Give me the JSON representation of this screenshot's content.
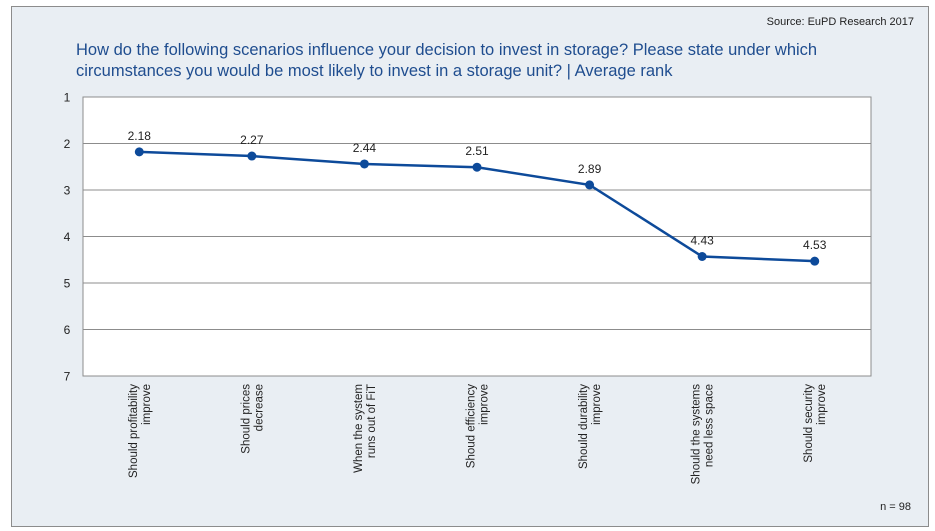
{
  "source": "Source: EuPD Research 2017",
  "title": "How do the following scenarios influence your decision to invest in storage? Please state under which circumstances you would be most likely to invest in a storage unit? | Average rank",
  "sample_size": "n = 98",
  "colors": {
    "series": "#0d4a9a",
    "title": "#1f4d8f",
    "background": "#e9eef3",
    "plot": "#ffffff",
    "grid": "#8c8c8c"
  },
  "chart_data": {
    "type": "line",
    "title": "How do the following scenarios influence your decision to invest in storage? Please state under which circumstances you would be most likely to invest in a storage unit? | Average rank",
    "xlabel": "",
    "ylabel": "",
    "ylim": [
      1,
      7
    ],
    "y_inverted": true,
    "yticks": [
      1,
      2,
      3,
      4,
      5,
      6,
      7
    ],
    "grid": true,
    "legend": "none",
    "categories": [
      [
        "Should profitability",
        "improve"
      ],
      [
        "Should prices",
        "decrease"
      ],
      [
        "When the system",
        "runs out of FiT"
      ],
      [
        "Shoud efficiency",
        "improve"
      ],
      [
        "Should durability",
        "improve"
      ],
      [
        "Should the systems",
        "need less space"
      ],
      [
        "Should security",
        "improve"
      ]
    ],
    "series": [
      {
        "name": "Average rank",
        "values": [
          2.18,
          2.27,
          2.44,
          2.51,
          2.89,
          4.43,
          4.53
        ]
      }
    ],
    "data_labels": [
      "2.18",
      "2.27",
      "2.44",
      "2.51",
      "2.89",
      "4.43",
      "4.53"
    ]
  }
}
